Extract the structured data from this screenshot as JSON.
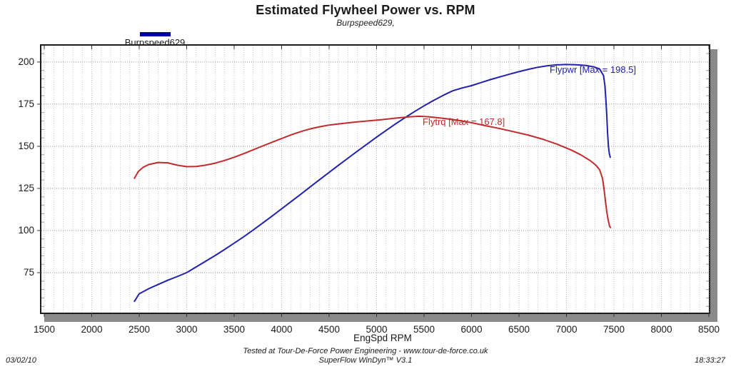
{
  "title": "Estimated Flywheel Power vs. RPM",
  "subtitle": "Burpspeed629,",
  "legend": {
    "label": "Burpspeed629",
    "color": "#0000a5"
  },
  "annotations": {
    "power": {
      "text": "Flypwr [Max = 198.5]",
      "color": "#2121ae"
    },
    "torque": {
      "text": "Flytrq [Max = 167.8]",
      "color": "#c22b2b"
    }
  },
  "footer": {
    "line1": "Tested at Tour-De-Force Power Engineering - www.tour-de-force.co.uk",
    "line2": "SuperFlow WinDyn™ V3.1",
    "date": "03/02/10",
    "time": "18:33:27"
  },
  "axes": {
    "x": {
      "label": "EngSpd RPM",
      "ticks": [
        1500,
        2000,
        2500,
        3000,
        3500,
        4000,
        4500,
        5000,
        5500,
        6000,
        6500,
        7000,
        7500,
        8000,
        8500
      ]
    },
    "y": {
      "ticks": [
        200,
        175,
        150,
        125,
        100,
        75
      ]
    }
  },
  "chart_data": {
    "type": "line",
    "title": "Estimated Flywheel Power vs. RPM",
    "subtitle": "Burpspeed629,",
    "xlabel": "EngSpd RPM",
    "ylabel": "",
    "x_axis": {
      "range": [
        1470,
        8500
      ],
      "major_step": 500,
      "minor_step": 100,
      "tick_start": 1500
    },
    "y_axis": {
      "range": [
        51.3,
        209.7
      ],
      "major_step": 25,
      "minor_step": 5,
      "tick_start": 55,
      "majors": [
        75,
        100,
        125,
        150,
        175,
        200
      ]
    },
    "grid": {
      "minor_v_color": "#c6c6c6",
      "major_v_color": "#b2b2b2",
      "major_h_color": "#8f8f8f"
    },
    "series": [
      {
        "name": "Flypwr",
        "label": "Flypwr [Max = 198.5]",
        "max": 198.5,
        "color": "#2121ae",
        "points": [
          [
            2450,
            58
          ],
          [
            2500,
            62.5
          ],
          [
            2600,
            65.5
          ],
          [
            2700,
            68
          ],
          [
            2800,
            70.5
          ],
          [
            2900,
            72.7
          ],
          [
            3000,
            75
          ],
          [
            3100,
            78.4
          ],
          [
            3200,
            81.8
          ],
          [
            3300,
            85.2
          ],
          [
            3400,
            88.8
          ],
          [
            3500,
            92.5
          ],
          [
            3600,
            96.3
          ],
          [
            3700,
            100.3
          ],
          [
            3800,
            104.4
          ],
          [
            3900,
            108.6
          ],
          [
            4000,
            112.9
          ],
          [
            4100,
            117.2
          ],
          [
            4200,
            121.5
          ],
          [
            4300,
            125.9
          ],
          [
            4400,
            130.2
          ],
          [
            4500,
            134.5
          ],
          [
            4600,
            138.8
          ],
          [
            4700,
            143
          ],
          [
            4800,
            147.2
          ],
          [
            4900,
            151.3
          ],
          [
            5000,
            155.4
          ],
          [
            5100,
            159.4
          ],
          [
            5200,
            163.3
          ],
          [
            5300,
            167
          ],
          [
            5400,
            170.6
          ],
          [
            5500,
            174
          ],
          [
            5600,
            177.2
          ],
          [
            5700,
            180.2
          ],
          [
            5800,
            182.9
          ],
          [
            5900,
            184.6
          ],
          [
            6000,
            186
          ],
          [
            6100,
            187.8
          ],
          [
            6200,
            189.6
          ],
          [
            6300,
            191.2
          ],
          [
            6400,
            192.8
          ],
          [
            6500,
            194.3
          ],
          [
            6600,
            195.7
          ],
          [
            6700,
            196.9
          ],
          [
            6800,
            197.8
          ],
          [
            6900,
            198.3
          ],
          [
            7000,
            198.5
          ],
          [
            7100,
            198.4
          ],
          [
            7200,
            198.0
          ],
          [
            7290,
            197.1
          ],
          [
            7350,
            195.8
          ],
          [
            7390,
            192
          ],
          [
            7405,
            186
          ],
          [
            7415,
            178
          ],
          [
            7425,
            168
          ],
          [
            7433,
            158
          ],
          [
            7442,
            150
          ],
          [
            7452,
            145.5
          ],
          [
            7462,
            143.5
          ]
        ]
      },
      {
        "name": "Flytrq",
        "label": "Flytrq [Max = 167.8]",
        "max": 167.8,
        "color": "#c22b2b",
        "points": [
          [
            2450,
            131
          ],
          [
            2490,
            135
          ],
          [
            2540,
            137.5
          ],
          [
            2600,
            139.2
          ],
          [
            2700,
            140.4
          ],
          [
            2800,
            140.2
          ],
          [
            2900,
            138.8
          ],
          [
            3000,
            137.9
          ],
          [
            3100,
            138.0
          ],
          [
            3200,
            138.8
          ],
          [
            3300,
            140
          ],
          [
            3400,
            141.6
          ],
          [
            3500,
            143.5
          ],
          [
            3600,
            145.6
          ],
          [
            3700,
            147.9
          ],
          [
            3800,
            150.2
          ],
          [
            3900,
            152.4
          ],
          [
            4000,
            154.6
          ],
          [
            4100,
            156.8
          ],
          [
            4200,
            158.7
          ],
          [
            4300,
            160.3
          ],
          [
            4400,
            161.6
          ],
          [
            4500,
            162.6
          ],
          [
            4600,
            163.3
          ],
          [
            4750,
            164.2
          ],
          [
            4900,
            165
          ],
          [
            5050,
            165.8
          ],
          [
            5200,
            166.7
          ],
          [
            5350,
            167.5
          ],
          [
            5450,
            167.8
          ],
          [
            5550,
            167.5
          ],
          [
            5700,
            166.6
          ],
          [
            5850,
            165.5
          ],
          [
            6000,
            164
          ],
          [
            6150,
            162.2
          ],
          [
            6300,
            160.5
          ],
          [
            6450,
            158.6
          ],
          [
            6600,
            156.6
          ],
          [
            6750,
            154.2
          ],
          [
            6900,
            151.3
          ],
          [
            7050,
            147.8
          ],
          [
            7150,
            145
          ],
          [
            7250,
            141.5
          ],
          [
            7310,
            138.8
          ],
          [
            7350,
            136
          ],
          [
            7380,
            131
          ],
          [
            7395,
            125
          ],
          [
            7410,
            118
          ],
          [
            7425,
            111
          ],
          [
            7440,
            106
          ],
          [
            7455,
            102.5
          ],
          [
            7465,
            101.8
          ]
        ]
      }
    ],
    "legend": {
      "entries": [
        "Burpspeed629"
      ],
      "position": "top-left"
    },
    "annotations": [
      "Flypwr [Max = 198.5]",
      "Flytrq [Max = 167.8]"
    ]
  }
}
